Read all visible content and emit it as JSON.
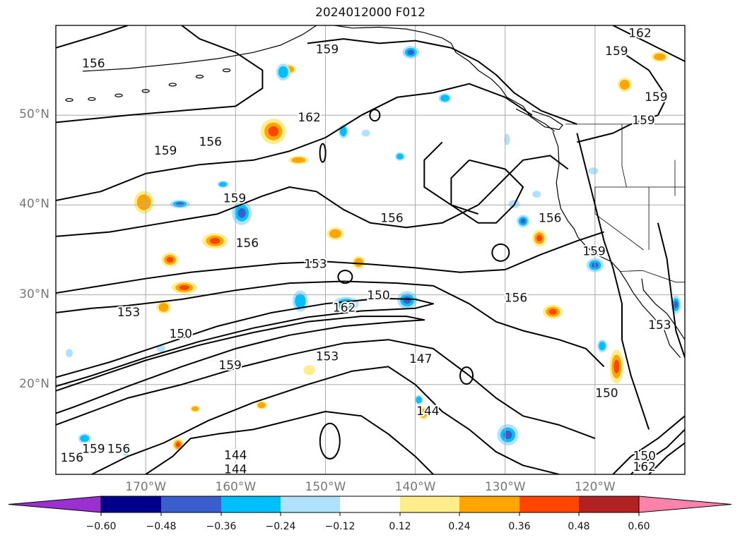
{
  "title": "2024012000 F012",
  "lat_labels": [
    "50°N",
    "40°N",
    "30°N",
    "20°N"
  ],
  "lon_labels": [
    "170°W",
    "160°W",
    "150°W",
    "140°W",
    "130°W",
    "120°W"
  ],
  "contour_labels": [
    {
      "text": "156",
      "lon": -175.8,
      "lat": 55.7
    },
    {
      "text": "159",
      "lon": -149.8,
      "lat": 57.3
    },
    {
      "text": "162",
      "lon": -151.8,
      "lat": 49.7
    },
    {
      "text": "159",
      "lon": -167.8,
      "lat": 46.0
    },
    {
      "text": "156",
      "lon": -162.8,
      "lat": 47.0
    },
    {
      "text": "159",
      "lon": -160.1,
      "lat": 40.7
    },
    {
      "text": "156",
      "lon": -142.6,
      "lat": 38.5
    },
    {
      "text": "156",
      "lon": -158.7,
      "lat": 35.7
    },
    {
      "text": "153",
      "lon": -151.1,
      "lat": 33.4
    },
    {
      "text": "150",
      "lon": -144.1,
      "lat": 29.9
    },
    {
      "text": "162",
      "lon": -147.9,
      "lat": 28.5
    },
    {
      "text": "153",
      "lon": -171.9,
      "lat": 28.0
    },
    {
      "text": "150",
      "lon": -166.1,
      "lat": 25.6
    },
    {
      "text": "153",
      "lon": -149.8,
      "lat": 23.1
    },
    {
      "text": "159",
      "lon": -160.6,
      "lat": 22.1
    },
    {
      "text": "147",
      "lon": -139.4,
      "lat": 22.8
    },
    {
      "text": "156",
      "lon": -128.8,
      "lat": 29.6
    },
    {
      "text": "156",
      "lon": -125.0,
      "lat": 38.5
    },
    {
      "text": "150",
      "lon": -118.7,
      "lat": 19.0
    },
    {
      "text": "144",
      "lon": -138.6,
      "lat": 17.0
    },
    {
      "text": "144",
      "lon": -160.0,
      "lat": 12.1
    },
    {
      "text": "144",
      "lon": -160.0,
      "lat": 10.5
    },
    {
      "text": "159",
      "lon": -117.6,
      "lat": 57.1
    },
    {
      "text": "162",
      "lon": -115.0,
      "lat": 59.1
    },
    {
      "text": "159",
      "lon": -113.2,
      "lat": 52.0
    },
    {
      "text": "159",
      "lon": -114.6,
      "lat": 49.4
    },
    {
      "text": "159",
      "lon": -120.1,
      "lat": 34.8
    },
    {
      "text": "153",
      "lon": -112.8,
      "lat": 26.6
    },
    {
      "text": "156",
      "lon": -178.2,
      "lat": 11.8
    },
    {
      "text": "159",
      "lon": -175.8,
      "lat": 12.8
    },
    {
      "text": "156",
      "lon": -173.0,
      "lat": 12.8
    },
    {
      "text": "150",
      "lon": -114.5,
      "lat": 12.0
    },
    {
      "text": "162",
      "lon": -114.5,
      "lat": 10.8
    }
  ],
  "colorbar": {
    "tick_labels": [
      "−0.60",
      "−0.48",
      "−0.36",
      "−0.24",
      "−0.12",
      "0.12",
      "0.24",
      "0.36",
      "0.48",
      "0.60"
    ],
    "colors": [
      "#9b30d0",
      "#00008b",
      "#3a5fcd",
      "#00bfff",
      "#b0e2ff",
      "#ffffff",
      "#ffec8b",
      "#ffa500",
      "#ff4500",
      "#b22222",
      "#ff82ab"
    ]
  }
}
